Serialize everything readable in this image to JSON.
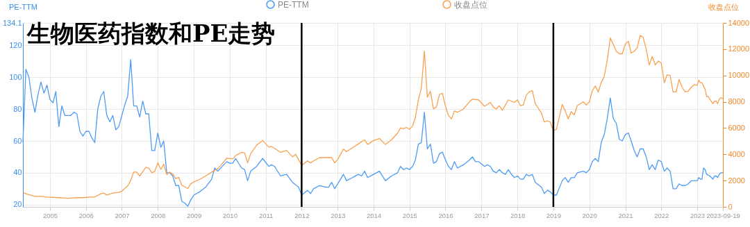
{
  "chart_data": {
    "type": "line",
    "title": "生物医药指数和PE走势",
    "ylabel": "PE-TTM",
    "y2label": "收盘点位",
    "xlim": [
      "2004-04",
      "2023-09-19"
    ],
    "xticks": [
      "2005",
      "2006",
      "2007",
      "2008",
      "2009",
      "2010",
      "2011",
      "2012",
      "2013",
      "2014",
      "2015",
      "2016",
      "2017",
      "2018",
      "2019",
      "2020",
      "2021",
      "2022",
      "2023",
      "2023-09-19"
    ],
    "ylim": [
      18.6,
      134.1
    ],
    "yticks": [
      20,
      40,
      60,
      80,
      100,
      120,
      134.1
    ],
    "y2lim": [
      0,
      14000
    ],
    "y2ticks": [
      0,
      2000,
      4000,
      6000,
      8000,
      10000,
      12000,
      14000
    ],
    "grid": true,
    "legend": "top",
    "ref_lines": [
      {
        "axis": "x",
        "value": "2012-01",
        "color": "#000000"
      },
      {
        "axis": "x",
        "value": "2019-01",
        "color": "#000000"
      }
    ],
    "series": [
      {
        "name": "PE-TTM",
        "color": "#4c9bf5",
        "x": [
          "2004-04",
          "2004-05",
          "2004-06",
          "2004-07",
          "2004-08",
          "2004-09",
          "2004-10",
          "2004-11",
          "2004-12",
          "2005-01",
          "2005-02",
          "2005-03",
          "2005-04",
          "2005-05",
          "2005-06",
          "2005-08",
          "2005-09",
          "2005-10",
          "2005-11",
          "2005-12",
          "2006-01",
          "2006-02",
          "2006-03",
          "2006-04",
          "2006-05",
          "2006-06",
          "2006-07",
          "2006-08",
          "2006-09",
          "2006-10",
          "2006-11",
          "2006-12",
          "2007-01",
          "2007-02",
          "2007-03",
          "2007-04",
          "2007-05",
          "2007-06",
          "2007-07",
          "2007-08",
          "2007-09",
          "2007-10",
          "2007-11",
          "2007-12",
          "2008-01",
          "2008-02",
          "2008-03",
          "2008-04",
          "2008-05",
          "2008-06",
          "2008-07",
          "2008-08",
          "2008-09",
          "2008-10",
          "2008-11",
          "2008-12",
          "2009-01",
          "2009-03",
          "2009-05",
          "2009-07",
          "2009-08",
          "2009-09",
          "2009-12",
          "2010-01",
          "2010-02",
          "2010-03",
          "2010-05",
          "2010-06",
          "2010-07",
          "2010-08",
          "2010-10",
          "2010-12",
          "2011-02",
          "2011-03",
          "2011-04",
          "2011-06",
          "2011-08",
          "2011-10",
          "2011-12",
          "2012-01",
          "2012-03",
          "2012-04",
          "2012-05",
          "2012-07",
          "2012-09",
          "2012-10",
          "2012-11",
          "2012-12",
          "2013-01",
          "2013-03",
          "2013-04",
          "2013-06",
          "2013-08",
          "2013-09",
          "2013-10",
          "2013-11",
          "2014-01",
          "2014-03",
          "2014-05",
          "2014-07",
          "2014-09",
          "2014-10",
          "2014-11",
          "2014-12",
          "2015-01",
          "2015-02",
          "2015-03",
          "2015-04",
          "2015-05",
          "2015-06",
          "2015-07",
          "2015-08",
          "2015-09",
          "2015-10",
          "2015-11",
          "2015-12",
          "2016-01",
          "2016-02",
          "2016-03",
          "2016-04",
          "2016-05",
          "2016-07",
          "2016-09",
          "2016-10",
          "2016-11",
          "2016-12",
          "2017-02",
          "2017-03",
          "2017-04",
          "2017-05",
          "2017-06",
          "2017-07",
          "2017-08",
          "2017-09",
          "2017-10",
          "2017-11",
          "2017-12",
          "2018-01",
          "2018-02",
          "2018-03",
          "2018-04",
          "2018-05",
          "2018-06",
          "2018-07",
          "2018-09",
          "2018-10",
          "2018-11",
          "2018-12",
          "2019-01",
          "2019-02",
          "2019-04",
          "2019-05",
          "2019-06",
          "2019-07",
          "2019-08",
          "2019-09",
          "2019-11",
          "2019-12",
          "2020-01",
          "2020-02",
          "2020-03",
          "2020-04",
          "2020-05",
          "2020-06",
          "2020-07",
          "2020-08",
          "2020-09",
          "2020-10",
          "2020-11",
          "2020-12",
          "2021-01",
          "2021-02",
          "2021-03",
          "2021-04",
          "2021-05",
          "2021-06",
          "2021-07",
          "2021-08",
          "2021-09",
          "2021-10",
          "2021-11",
          "2021-12",
          "2022-01",
          "2022-02",
          "2022-03",
          "2022-04",
          "2022-05",
          "2022-06",
          "2022-07",
          "2022-08",
          "2022-09",
          "2022-10",
          "2022-11",
          "2022-12",
          "2023-01-01",
          "2023-01-17",
          "2023-02-02",
          "2023-02-18",
          "2023-03-06",
          "2023-03-22",
          "2023-04-07",
          "2023-05-09",
          "2023-06-10",
          "2023-06-26",
          "2023-07-12",
          "2023-07-28",
          "2023-08-13",
          "2023-08-29",
          "2023-09-19"
        ],
        "values": [
          59,
          105,
          100,
          87,
          78,
          89,
          97,
          90,
          95,
          86,
          84,
          91,
          69,
          82,
          76,
          76,
          78,
          77,
          66,
          63,
          66,
          66,
          62,
          59,
          80,
          88,
          91,
          76,
          72,
          76,
          67,
          69,
          76,
          83,
          88,
          111,
          82,
          82,
          75,
          85,
          77,
          77,
          54,
          54,
          65,
          56,
          60,
          40,
          40,
          38,
          32,
          32,
          22,
          21,
          19,
          23,
          26,
          28,
          31,
          36,
          43,
          41,
          47,
          46,
          46,
          49,
          43,
          42,
          35,
          41,
          44,
          49,
          44,
          45,
          44,
          38,
          39,
          34,
          31,
          26,
          29,
          27,
          30,
          32,
          31,
          31,
          34,
          30,
          33,
          39,
          35,
          37,
          39,
          38,
          41,
          37,
          39,
          41,
          35,
          38,
          40,
          44,
          42,
          43,
          42,
          44,
          48,
          58,
          59,
          78,
          55,
          58,
          46,
          47,
          52,
          53,
          48,
          44,
          42,
          47,
          43,
          45,
          48,
          50,
          47,
          47,
          44,
          45,
          44,
          41,
          40,
          42,
          40,
          39,
          42,
          39,
          37,
          38,
          36,
          36,
          39,
          38,
          39,
          34,
          31,
          27,
          29,
          28,
          26,
          26,
          35,
          37,
          34,
          37,
          37,
          40,
          41,
          40,
          42,
          47,
          49,
          47,
          59,
          64,
          74,
          87,
          74,
          71,
          61,
          60,
          64,
          65,
          60,
          54,
          50,
          55,
          55,
          50,
          42,
          45,
          42,
          48,
          47,
          41,
          43,
          41,
          30,
          30,
          33,
          32,
          32,
          33,
          35,
          35,
          35,
          37,
          36,
          36,
          43,
          42,
          39,
          38,
          36,
          38,
          38,
          37,
          39,
          40,
          40
        ]
      },
      {
        "name": "收盘点位",
        "color": "#f8a14e",
        "axis": "y2",
        "x": [
          "2004-04",
          "2004-05",
          "2004-08",
          "2004-10",
          "2004-12",
          "2005-04",
          "2005-07",
          "2005-10",
          "2005-12",
          "2006-02",
          "2006-04",
          "2006-06",
          "2006-07",
          "2006-08",
          "2006-10",
          "2006-12",
          "2007-01",
          "2007-03",
          "2007-04",
          "2007-05",
          "2007-06",
          "2007-07",
          "2007-09",
          "2007-10",
          "2007-11",
          "2007-12",
          "2008-01",
          "2008-02",
          "2008-03",
          "2008-04",
          "2008-05",
          "2008-06",
          "2008-07",
          "2008-08",
          "2008-09",
          "2008-11",
          "2008-12",
          "2009-01",
          "2009-03",
          "2009-05",
          "2009-07",
          "2009-09",
          "2009-10",
          "2009-12",
          "2010-02",
          "2010-03",
          "2010-05",
          "2010-06",
          "2010-07",
          "2010-08",
          "2010-10",
          "2010-12",
          "2011-02",
          "2011-03",
          "2011-04",
          "2011-06",
          "2011-08",
          "2011-10",
          "2011-11",
          "2011-12",
          "2012-01",
          "2012-03",
          "2012-04",
          "2012-05",
          "2012-07",
          "2012-09",
          "2012-11",
          "2012-12",
          "2013-01",
          "2013-03",
          "2013-04",
          "2013-06",
          "2013-08",
          "2013-10",
          "2013-11",
          "2014-01",
          "2014-03",
          "2014-05",
          "2014-07",
          "2014-09",
          "2014-10",
          "2014-11",
          "2014-12",
          "2015-01",
          "2015-02",
          "2015-03",
          "2015-04",
          "2015-05",
          "2015-06",
          "2015-07",
          "2015-08",
          "2015-09",
          "2015-10",
          "2015-11",
          "2015-12",
          "2016-01",
          "2016-02",
          "2016-03",
          "2016-04",
          "2016-05",
          "2016-07",
          "2016-09",
          "2016-10",
          "2016-12",
          "2017-02",
          "2017-04",
          "2017-05",
          "2017-06",
          "2017-07",
          "2017-08",
          "2017-10",
          "2017-12",
          "2018-01",
          "2018-02",
          "2018-03",
          "2018-04",
          "2018-05",
          "2018-06",
          "2018-07",
          "2018-09",
          "2018-10",
          "2018-11",
          "2018-12",
          "2019-01",
          "2019-02",
          "2019-04",
          "2019-05",
          "2019-06",
          "2019-07",
          "2019-08",
          "2019-09",
          "2019-11",
          "2019-12",
          "2020-01",
          "2020-02",
          "2020-03",
          "2020-04",
          "2020-05",
          "2020-06",
          "2020-07",
          "2020-08",
          "2020-09",
          "2020-10",
          "2020-11",
          "2020-12",
          "2021-01",
          "2021-02",
          "2021-03",
          "2021-04",
          "2021-05",
          "2021-06",
          "2021-07",
          "2021-08",
          "2021-09",
          "2021-10",
          "2021-11",
          "2021-12",
          "2022-01",
          "2022-02",
          "2022-03",
          "2022-04",
          "2022-05",
          "2022-06",
          "2022-07",
          "2022-08",
          "2022-09",
          "2022-10",
          "2022-11",
          "2022-12",
          "2023-01-01",
          "2023-01-17",
          "2023-02-02",
          "2023-02-18",
          "2023-03-06",
          "2023-03-22",
          "2023-04-07",
          "2023-04-23",
          "2023-05-09",
          "2023-06-10",
          "2023-06-26",
          "2023-07-12",
          "2023-07-28",
          "2023-08-13",
          "2023-08-29",
          "2023-09-19"
        ],
        "values": [
          1100,
          1000,
          800,
          800,
          750,
          700,
          650,
          700,
          700,
          750,
          750,
          1000,
          1050,
          900,
          1050,
          1100,
          1200,
          1600,
          2000,
          2650,
          2650,
          2350,
          3000,
          2950,
          2600,
          2700,
          3350,
          2850,
          3250,
          2450,
          2650,
          2500,
          2150,
          2250,
          1650,
          1400,
          1750,
          1900,
          2100,
          2350,
          2650,
          2900,
          3150,
          3700,
          3650,
          3900,
          4150,
          4100,
          3350,
          4050,
          4700,
          5050,
          4550,
          4600,
          4450,
          4150,
          4300,
          3800,
          4000,
          3600,
          3150,
          3500,
          3350,
          3500,
          3750,
          3750,
          3750,
          3350,
          3600,
          4400,
          4200,
          4500,
          4800,
          5100,
          4750,
          5050,
          5200,
          4750,
          5100,
          5600,
          6000,
          5950,
          6050,
          5900,
          6150,
          6800,
          8150,
          9050,
          11850,
          8350,
          8800,
          7450,
          7600,
          8550,
          8650,
          7650,
          6950,
          6700,
          7300,
          7200,
          7450,
          8000,
          8200,
          8150,
          7650,
          7950,
          7600,
          7450,
          7700,
          7350,
          8150,
          7950,
          8150,
          7700,
          7750,
          8500,
          8750,
          8850,
          7850,
          7150,
          6450,
          6550,
          6450,
          5800,
          5900,
          7800,
          7300,
          6700,
          7250,
          7000,
          7700,
          8000,
          7750,
          8000,
          8850,
          9200,
          8750,
          9450,
          9950,
          11150,
          12850,
          12350,
          11850,
          11650,
          11650,
          12400,
          12600,
          11700,
          11850,
          12100,
          13050,
          12900,
          12000,
          10800,
          11450,
          10800,
          11100,
          10950,
          9450,
          10050,
          10000,
          8750,
          8750,
          9700,
          9100,
          8750,
          8800,
          9100,
          9300,
          9250,
          9650,
          9450,
          9450,
          9200,
          8950,
          8400,
          8400,
          8200,
          7850,
          8050,
          8050,
          7850,
          8200,
          8300,
          8250
        ]
      }
    ]
  }
}
